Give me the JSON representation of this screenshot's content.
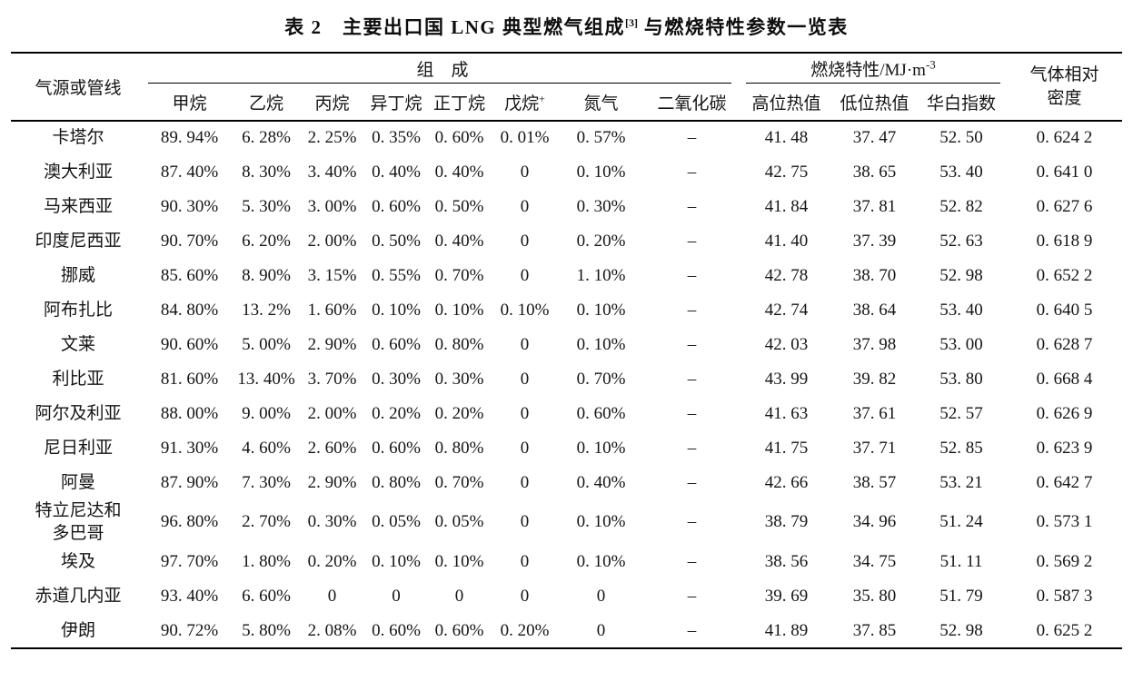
{
  "title": {
    "part1": "表 2　主要出口国 LNG 典型燃气组成",
    "sup": "[3]",
    "part2": " 与燃烧特性参数一览表"
  },
  "header": {
    "source": "气源或管线",
    "composition_group": "组　成",
    "combustion_prefix": "燃烧特性/MJ·m",
    "combustion_sup": "-3",
    "density": "气体相对\n密度",
    "components": [
      "甲烷",
      "乙烷",
      "丙烷",
      "异丁烷",
      "正丁烷",
      "戊烷",
      "氮气",
      "二氧化碳"
    ],
    "pentane_sup": "+",
    "combustion_cols": [
      "高位热值",
      "低位热值",
      "华白指数"
    ]
  },
  "rows": [
    {
      "name": "卡塔尔",
      "cells": [
        "89. 94%",
        "6. 28%",
        "2. 25%",
        "0. 35%",
        "0. 60%",
        "0. 01%",
        "0. 57%",
        "–",
        "41. 48",
        "37. 47",
        "52. 50",
        "0. 624 2"
      ]
    },
    {
      "name": "澳大利亚",
      "cells": [
        "87. 40%",
        "8. 30%",
        "3. 40%",
        "0. 40%",
        "0. 40%",
        "0",
        "0. 10%",
        "–",
        "42. 75",
        "38. 65",
        "53. 40",
        "0. 641 0"
      ]
    },
    {
      "name": "马来西亚",
      "cells": [
        "90. 30%",
        "5. 30%",
        "3. 00%",
        "0. 60%",
        "0. 50%",
        "0",
        "0. 30%",
        "–",
        "41. 84",
        "37. 81",
        "52. 82",
        "0. 627 6"
      ]
    },
    {
      "name": "印度尼西亚",
      "cells": [
        "90. 70%",
        "6. 20%",
        "2. 00%",
        "0. 50%",
        "0. 40%",
        "0",
        "0. 20%",
        "–",
        "41. 40",
        "37. 39",
        "52. 63",
        "0. 618 9"
      ]
    },
    {
      "name": "挪威",
      "cells": [
        "85. 60%",
        "8. 90%",
        "3. 15%",
        "0. 55%",
        "0. 70%",
        "0",
        "1. 10%",
        "–",
        "42. 78",
        "38. 70",
        "52. 98",
        "0. 652 2"
      ]
    },
    {
      "name": "阿布扎比",
      "cells": [
        "84. 80%",
        "13. 2%",
        "1. 60%",
        "0. 10%",
        "0. 10%",
        "0. 10%",
        "0. 10%",
        "–",
        "42. 74",
        "38. 64",
        "53. 40",
        "0. 640 5"
      ]
    },
    {
      "name": "文莱",
      "cells": [
        "90. 60%",
        "5. 00%",
        "2. 90%",
        "0. 60%",
        "0. 80%",
        "0",
        "0. 10%",
        "–",
        "42. 03",
        "37. 98",
        "53. 00",
        "0. 628 7"
      ]
    },
    {
      "name": "利比亚",
      "cells": [
        "81. 60%",
        "13. 40%",
        "3. 70%",
        "0. 30%",
        "0. 30%",
        "0",
        "0. 70%",
        "–",
        "43. 99",
        "39. 82",
        "53. 80",
        "0. 668 4"
      ]
    },
    {
      "name": "阿尔及利亚",
      "cells": [
        "88. 00%",
        "9. 00%",
        "2. 00%",
        "0. 20%",
        "0. 20%",
        "0",
        "0. 60%",
        "–",
        "41. 63",
        "37. 61",
        "52. 57",
        "0. 626 9"
      ]
    },
    {
      "name": "尼日利亚",
      "cells": [
        "91. 30%",
        "4. 60%",
        "2. 60%",
        "0. 60%",
        "0. 80%",
        "0",
        "0. 10%",
        "–",
        "41. 75",
        "37. 71",
        "52. 85",
        "0. 623 9"
      ]
    },
    {
      "name": "阿曼",
      "cells": [
        "87. 90%",
        "7. 30%",
        "2. 90%",
        "0. 80%",
        "0. 70%",
        "0",
        "0. 40%",
        "–",
        "42. 66",
        "38. 57",
        "53. 21",
        "0. 642 7"
      ]
    },
    {
      "name": "特立尼达和\n多巴哥",
      "cells": [
        "96. 80%",
        "2. 70%",
        "0. 30%",
        "0. 05%",
        "0. 05%",
        "0",
        "0. 10%",
        "–",
        "38. 79",
        "34. 96",
        "51. 24",
        "0. 573 1"
      ]
    },
    {
      "name": "埃及",
      "cells": [
        "97. 70%",
        "1. 80%",
        "0. 20%",
        "0. 10%",
        "0. 10%",
        "0",
        "0. 10%",
        "–",
        "38. 56",
        "34. 75",
        "51. 11",
        "0. 569 2"
      ]
    },
    {
      "name": "赤道几内亚",
      "cells": [
        "93. 40%",
        "6. 60%",
        "0",
        "0",
        "0",
        "0",
        "0",
        "–",
        "39. 69",
        "35. 80",
        "51. 79",
        "0. 587 3"
      ]
    },
    {
      "name": "伊朗",
      "cells": [
        "90. 72%",
        "5. 80%",
        "2. 08%",
        "0. 60%",
        "0. 60%",
        "0. 20%",
        "0",
        "–",
        "41. 89",
        "37. 85",
        "52. 98",
        "0. 625 2"
      ]
    }
  ]
}
